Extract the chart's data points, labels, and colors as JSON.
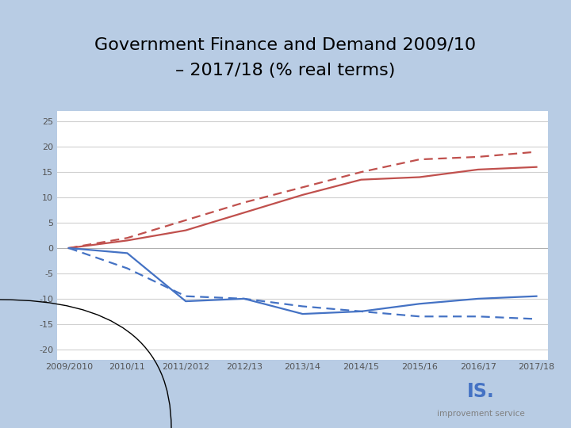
{
  "title_line1": "Government Finance and Demand 2009/10",
  "title_line2": "– 2017/18 (% real terms)",
  "title_fontsize": 16,
  "background_color": "#b8cce4",
  "background_plot": "#ffffff",
  "x_labels": [
    "2009/2010",
    "2010/11",
    "2011/2012",
    "2012/13",
    "2013/14",
    "2014/15",
    "2015/16",
    "2016/17",
    "2017/18"
  ],
  "red_solid": [
    0,
    1.5,
    3.5,
    7.0,
    10.5,
    13.5,
    14.0,
    15.5,
    16.0
  ],
  "red_dashed": [
    0,
    2.0,
    5.5,
    9.0,
    12.0,
    15.0,
    17.5,
    18.0,
    19.0
  ],
  "blue_solid": [
    0,
    -1.0,
    -10.5,
    -10.0,
    -13.0,
    -12.5,
    -11.0,
    -10.0,
    -9.5
  ],
  "blue_dashed": [
    0,
    -4.0,
    -9.5,
    -10.0,
    -11.5,
    -12.5,
    -13.5,
    -13.5,
    -14.0
  ],
  "red_color": "#c0504d",
  "blue_color": "#4472c4",
  "ylim": [
    -22,
    27
  ],
  "yticks": [
    -20,
    -15,
    -10,
    -5,
    0,
    5,
    10,
    15,
    20,
    25
  ],
  "grid_color": "#d0d0d0",
  "line_width": 1.6,
  "tick_fontsize": 8,
  "logo_is_color": "#4472c4",
  "logo_dot_color": "#c0504d",
  "logo_text_color": "#808080"
}
